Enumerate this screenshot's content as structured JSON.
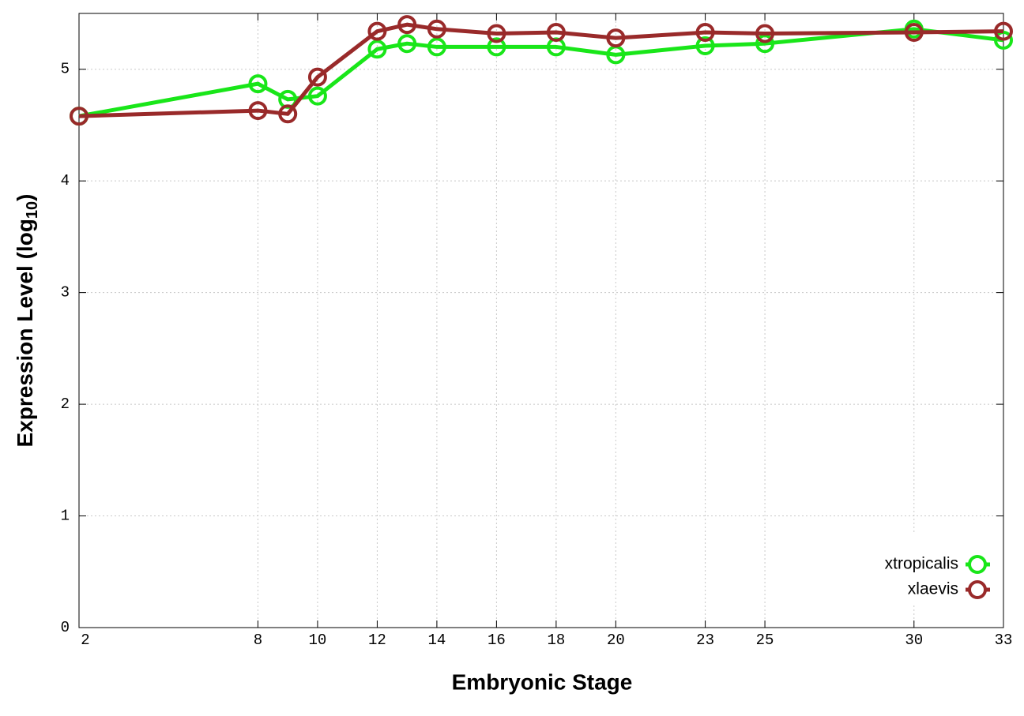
{
  "chart_data": {
    "type": "line",
    "xlabel": "Embryonic Stage",
    "ylabel": {
      "text": "Expression Level (log",
      "sub": "10",
      "end": ")"
    },
    "x": [
      2,
      8,
      9,
      10,
      12,
      13,
      14,
      16,
      18,
      20,
      23,
      25,
      30,
      33
    ],
    "series": [
      {
        "name": "xtropicalis",
        "color": "#19e619",
        "values": [
          4.58,
          4.87,
          4.73,
          4.76,
          5.18,
          5.23,
          5.2,
          5.2,
          5.2,
          5.13,
          5.21,
          5.23,
          5.36,
          5.26
        ]
      },
      {
        "name": "xlaevis",
        "color": "#992a2a",
        "values": [
          4.58,
          4.63,
          4.6,
          4.93,
          5.34,
          5.4,
          5.36,
          5.32,
          5.33,
          5.28,
          5.33,
          5.32,
          5.33,
          5.34
        ]
      }
    ],
    "xlim": [
      2,
      33
    ],
    "xticks": [
      2,
      8,
      10,
      12,
      14,
      16,
      18,
      20,
      23,
      25,
      30,
      33
    ],
    "ylim": [
      0,
      5.5
    ],
    "yticks": [
      0,
      1,
      2,
      3,
      4,
      5
    ],
    "grid": true,
    "legend": "bottom-right"
  }
}
